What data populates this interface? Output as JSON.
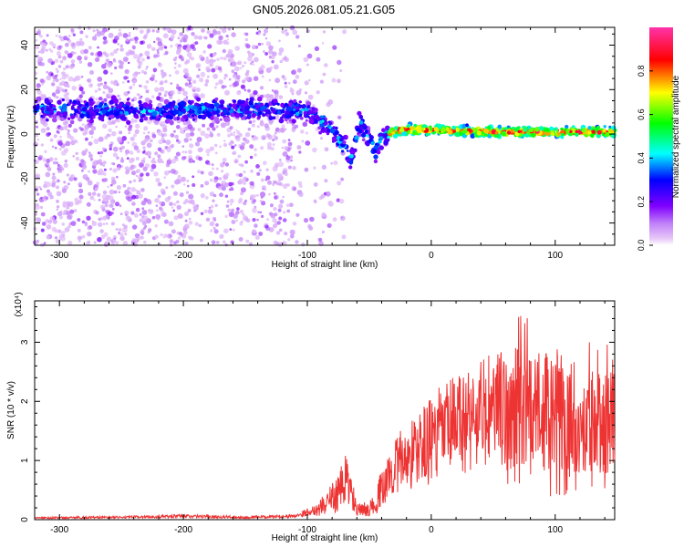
{
  "title": "GN05.2026.081.05.21.G05",
  "chart_data": [
    {
      "type": "heatmap",
      "xlabel": "Height of straight line (km)",
      "ylabel": "Frequency (Hz)",
      "xlim": [
        -320,
        148
      ],
      "ylim": [
        -50,
        48
      ],
      "xticks": [
        -300,
        -200,
        -100,
        0,
        100
      ],
      "yticks": [
        -40,
        -20,
        0,
        20,
        40
      ],
      "colorbar": {
        "label": "Normalized spectral amplitude",
        "range": [
          0,
          1
        ],
        "ticks": [
          "0.0",
          "0.2",
          "0.4",
          "0.6",
          "0.8"
        ]
      },
      "ridge": {
        "description_points": [
          {
            "x": -290,
            "y": 11
          },
          {
            "x": -260,
            "y": 11
          },
          {
            "x": -220,
            "y": 10
          },
          {
            "x": -200,
            "y": 11
          },
          {
            "x": -160,
            "y": 11
          },
          {
            "x": -120,
            "y": 11
          },
          {
            "x": -100,
            "y": 10
          },
          {
            "x": -88,
            "y": 6
          },
          {
            "x": -78,
            "y": 0
          },
          {
            "x": -70,
            "y": -6
          },
          {
            "x": -64,
            "y": -11
          },
          {
            "x": -58,
            "y": 5
          },
          {
            "x": -50,
            "y": -2
          },
          {
            "x": -45,
            "y": -8
          },
          {
            "x": -40,
            "y": -1
          },
          {
            "x": -30,
            "y": 1
          },
          {
            "x": -20,
            "y": 2
          },
          {
            "x": 0,
            "y": 2
          },
          {
            "x": 50,
            "y": 1
          },
          {
            "x": 100,
            "y": 1
          },
          {
            "x": 148,
            "y": 1
          }
        ]
      }
    },
    {
      "type": "line",
      "xlabel": "Height of straight line (km)",
      "ylabel": "SNR (10 * v/v)",
      "yexponent": "(x10⁴)",
      "xlim": [
        -320,
        148
      ],
      "ylim": [
        0,
        3.7
      ],
      "xticks": [
        -300,
        -200,
        -100,
        0,
        100
      ],
      "yticks": [
        0,
        1,
        2,
        3
      ],
      "color": "#ee3333",
      "envelope": [
        {
          "x": -320,
          "y": 0.03
        },
        {
          "x": -250,
          "y": 0.04
        },
        {
          "x": -200,
          "y": 0.06
        },
        {
          "x": -150,
          "y": 0.04
        },
        {
          "x": -110,
          "y": 0.06
        },
        {
          "x": -90,
          "y": 0.2
        },
        {
          "x": -75,
          "y": 0.45
        },
        {
          "x": -68,
          "y": 0.7
        },
        {
          "x": -60,
          "y": 0.15
        },
        {
          "x": -48,
          "y": 0.2
        },
        {
          "x": -40,
          "y": 0.5
        },
        {
          "x": -30,
          "y": 0.9
        },
        {
          "x": -10,
          "y": 1.2
        },
        {
          "x": 10,
          "y": 1.5
        },
        {
          "x": 30,
          "y": 1.7
        },
        {
          "x": 50,
          "y": 1.85
        },
        {
          "x": 70,
          "y": 1.9
        },
        {
          "x": 90,
          "y": 1.85
        },
        {
          "x": 110,
          "y": 1.8
        },
        {
          "x": 130,
          "y": 1.7
        },
        {
          "x": 148,
          "y": 1.65
        }
      ]
    }
  ]
}
